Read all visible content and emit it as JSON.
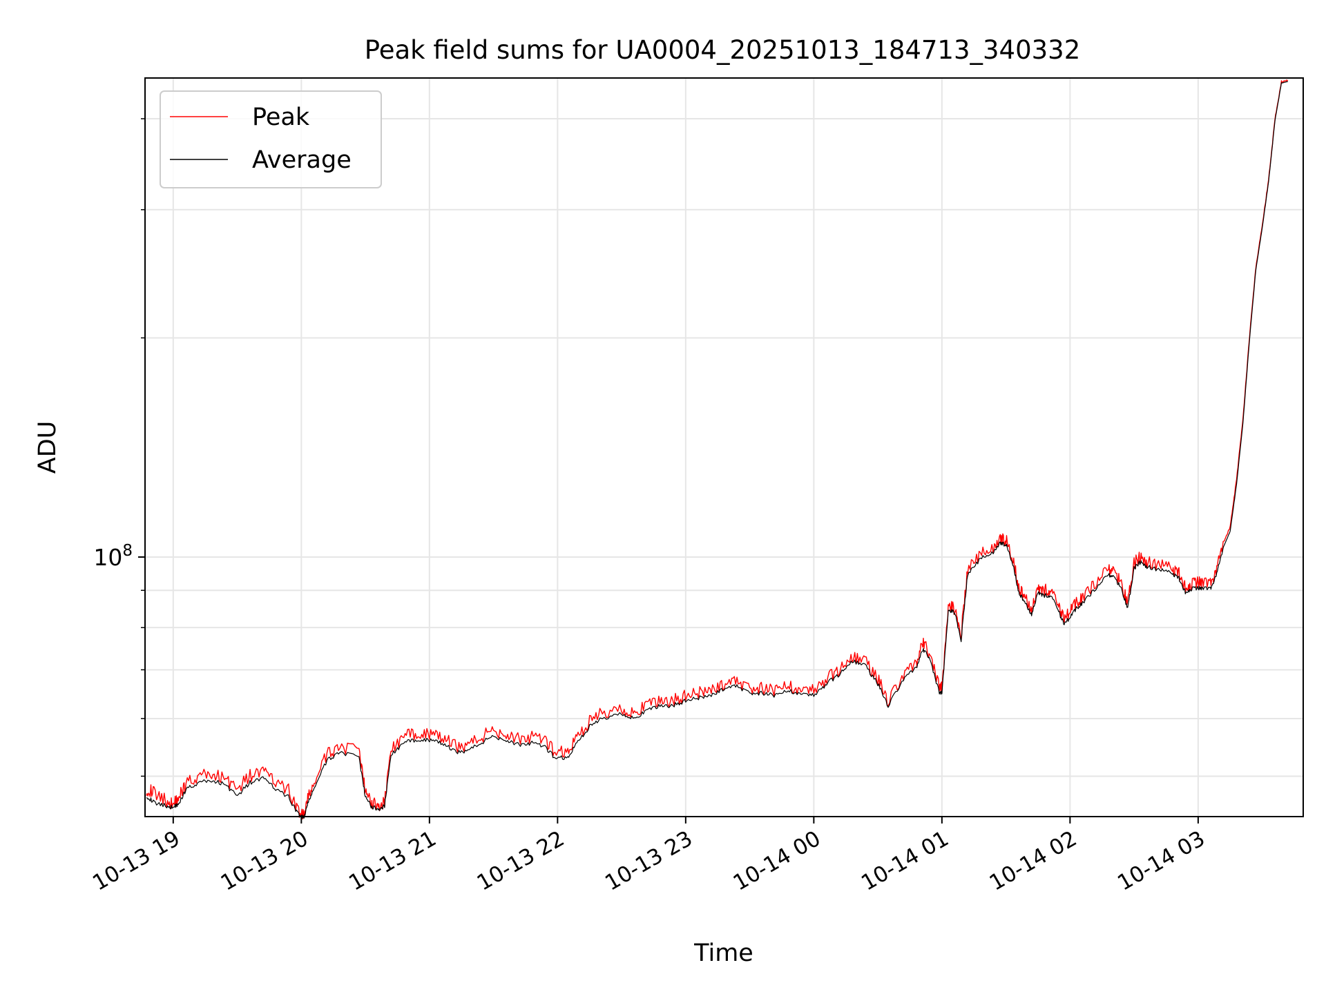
{
  "colors": {
    "peak": "#ff0000",
    "average": "#000000",
    "grid": "#e6e6e6",
    "background": "#ffffff"
  },
  "chart_data": {
    "type": "line",
    "title": "Peak field sums for UA0004_20251013_184713_340332",
    "xlabel": "Time",
    "ylabel": "ADU",
    "yscale": "log",
    "grid": true,
    "legend_position": "top-left",
    "xlim_hours": [
      18.78,
      27.82
    ],
    "ylim": [
      44000000,
      455000000
    ],
    "x_ticks": [
      {
        "value": 19,
        "label": "10-13 19"
      },
      {
        "value": 20,
        "label": "10-13 20"
      },
      {
        "value": 21,
        "label": "10-13 21"
      },
      {
        "value": 22,
        "label": "10-13 22"
      },
      {
        "value": 23,
        "label": "10-13 23"
      },
      {
        "value": 24,
        "label": "10-14 00"
      },
      {
        "value": 25,
        "label": "10-14 01"
      },
      {
        "value": 26,
        "label": "10-14 02"
      },
      {
        "value": 27,
        "label": "10-14 03"
      }
    ],
    "y_major_ticks": [
      {
        "value": 100000000,
        "base": "10",
        "exponent": "8"
      }
    ],
    "y_minor_ticks": [
      50000000,
      60000000,
      70000000,
      80000000,
      90000000,
      200000000,
      300000000,
      400000000
    ],
    "x_hours": [
      18.79,
      18.85,
      18.95,
      19.0,
      19.05,
      19.1,
      19.2,
      19.3,
      19.4,
      19.5,
      19.6,
      19.7,
      19.8,
      19.9,
      19.97,
      20.02,
      20.05,
      20.1,
      20.2,
      20.3,
      20.45,
      20.5,
      20.55,
      20.6,
      20.65,
      20.7,
      20.8,
      20.9,
      21.0,
      21.1,
      21.2,
      21.3,
      21.4,
      21.5,
      21.6,
      21.7,
      21.8,
      21.9,
      21.98,
      22.08,
      22.15,
      22.25,
      22.35,
      22.5,
      22.6,
      22.7,
      22.8,
      22.9,
      23.0,
      23.1,
      23.2,
      23.3,
      23.4,
      23.5,
      23.6,
      23.7,
      23.8,
      23.9,
      24.0,
      24.1,
      24.2,
      24.3,
      24.4,
      24.5,
      24.58,
      24.7,
      24.8,
      24.85,
      24.9,
      24.98,
      25.0,
      25.05,
      25.1,
      25.15,
      25.2,
      25.3,
      25.4,
      25.45,
      25.5,
      25.55,
      25.6,
      25.65,
      25.7,
      25.75,
      25.8,
      25.85,
      25.9,
      25.95,
      26.0,
      26.05,
      26.1,
      26.2,
      26.3,
      26.35,
      26.4,
      26.45,
      26.5,
      26.55,
      26.6,
      26.7,
      26.8,
      26.85,
      26.9,
      26.95,
      27.0,
      27.05,
      27.1,
      27.15,
      27.2,
      27.25,
      27.3,
      27.35,
      27.4,
      27.45,
      27.5,
      27.55,
      27.6,
      27.65,
      27.7
    ],
    "series": [
      {
        "name": "Peak",
        "values": [
          48000000,
          47500000,
          46200000,
          45800000,
          47000000,
          49000000,
          50000000,
          50300000,
          49800000,
          48000000,
          50100000,
          50800000,
          49000000,
          47800000,
          45000000,
          44000000,
          46500000,
          49000000,
          53500000,
          55000000,
          54000000,
          47500000,
          46000000,
          45500000,
          46000000,
          54500000,
          56500000,
          57500000,
          57000000,
          56500000,
          55000000,
          55200000,
          56500000,
          58000000,
          57000000,
          56200000,
          56500000,
          55800000,
          54000000,
          54000000,
          56500000,
          59500000,
          61000000,
          62000000,
          61000000,
          62500000,
          63500000,
          63500000,
          64500000,
          65000000,
          65500000,
          67000000,
          67500000,
          66000000,
          66000000,
          65500000,
          66500000,
          66000000,
          65500000,
          68000000,
          70000000,
          73000000,
          72000000,
          68000000,
          63500000,
          69000000,
          71500000,
          76000000,
          74000000,
          66000000,
          66000000,
          86000000,
          85000000,
          78500000,
          96000000,
          101000000,
          103000000,
          106000000,
          105500000,
          100000000,
          91000000,
          88000000,
          85000000,
          91000000,
          90000000,
          90000000,
          86000000,
          82500000,
          84000000,
          86500000,
          88000000,
          92000000,
          96000000,
          95000000,
          92000000,
          86500000,
          98000000,
          100000000,
          98500000,
          97500000,
          96500000,
          95000000,
          91000000,
          92000000,
          92000000,
          92000000,
          92000000,
          97000000,
          105000000,
          110000000,
          128000000,
          155000000,
          200000000,
          250000000,
          285000000,
          330000000,
          400000000,
          450000000,
          452000000
        ]
      },
      {
        "name": "Average",
        "values": [
          47000000,
          46000000,
          45500000,
          45300000,
          46000000,
          48000000,
          49000000,
          49300000,
          48800000,
          47000000,
          49000000,
          49700000,
          48000000,
          46800000,
          44500000,
          43800000,
          45800000,
          48200000,
          52500000,
          54000000,
          53000000,
          46800000,
          45400000,
          45000000,
          45500000,
          53500000,
          55500000,
          56200000,
          56000000,
          55500000,
          54000000,
          54200000,
          55500000,
          56800000,
          56000000,
          55200000,
          55500000,
          54800000,
          53000000,
          53000000,
          55500000,
          58500000,
          60000000,
          61000000,
          60000000,
          61500000,
          62500000,
          62500000,
          63500000,
          64000000,
          64500000,
          66000000,
          66500000,
          65000000,
          65000000,
          64500000,
          65500000,
          65000000,
          64500000,
          67000000,
          69000000,
          72000000,
          71000000,
          67000000,
          62500000,
          68000000,
          70500000,
          74500000,
          73000000,
          65000000,
          65000000,
          84500000,
          84000000,
          77000000,
          94500000,
          99500000,
          101500000,
          104500000,
          104000000,
          98500000,
          89500000,
          86500000,
          83500000,
          89500000,
          88500000,
          88500000,
          85000000,
          81000000,
          82500000,
          85000000,
          86500000,
          90500000,
          94500000,
          93500000,
          90500000,
          85000000,
          96500000,
          98500000,
          97000000,
          96000000,
          95000000,
          93500000,
          89500000,
          90500000,
          90500000,
          90500000,
          90500000,
          95500000,
          103500000,
          108500000,
          126000000,
          153000000,
          198000000,
          248000000,
          283000000,
          328000000,
          398000000,
          448000000,
          450000000
        ]
      }
    ]
  }
}
